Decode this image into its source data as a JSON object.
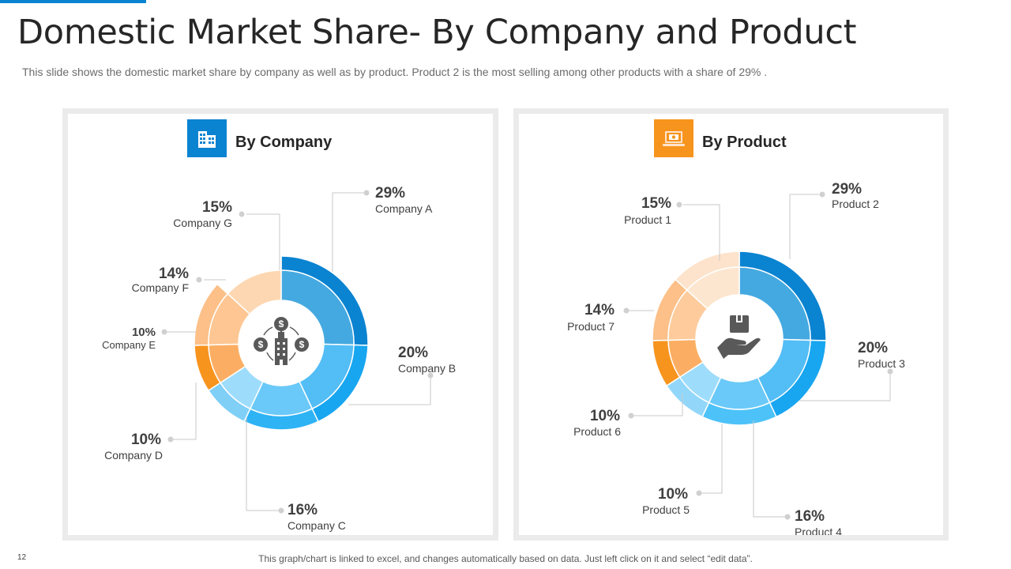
{
  "slide": {
    "title": "Domestic Market Share- By Company and Product",
    "subtitle": "This slide shows the domestic market share by company as well as by product. Product 2 is the most selling among other products with a share of 29% .",
    "page_number": "12",
    "footer": "This graph/chart is linked to excel, and changes automatically based on data. Just left click on it and select “edit data”."
  },
  "colors": {
    "accent": "#0a83d1",
    "company_icon_bg": "#0a83d1",
    "product_icon_bg": "#f7941d",
    "blue_dark": "#0a83d1",
    "blue": "#18a6f0",
    "orange": "#f7941d"
  },
  "chart_data": [
    {
      "type": "pie",
      "variant": "double-ring donut",
      "title": "By Company",
      "icon": "building-icon",
      "center_icon": "dollar-network-icon",
      "labels": [
        "Company A",
        "Company B",
        "Company C",
        "Company D",
        "Company E",
        "Company F",
        "Company G"
      ],
      "values": [
        29,
        20,
        16,
        10,
        10,
        14,
        15
      ],
      "value_labels": [
        "29%",
        "20%",
        "16%",
        "10%",
        "10%",
        "14%",
        "15%"
      ],
      "outer_colors": [
        "#0a83d1",
        "#18a6f0",
        "#2eb3f5",
        "#7fcff7",
        "#f7941d",
        "#fcc088",
        "#ffffff"
      ],
      "inner_colors": [
        "#44a9e0",
        "#53bdf5",
        "#6ac9f8",
        "#9edcfb",
        "#fbae63",
        "#fdc692",
        "#fdd7b2"
      ]
    },
    {
      "type": "pie",
      "variant": "double-ring donut",
      "title": "By Product",
      "icon": "money-laptop-icon",
      "center_icon": "hand-box-icon",
      "labels": [
        "Product 2",
        "Product 3",
        "Product 4",
        "Product 5",
        "Product 6",
        "Product 7",
        "Product 1"
      ],
      "values": [
        29,
        20,
        16,
        10,
        10,
        14,
        15
      ],
      "value_labels": [
        "29%",
        "20%",
        "16%",
        "10%",
        "10%",
        "14%",
        "15%"
      ],
      "outer_colors": [
        "#0a83d1",
        "#18a6f0",
        "#4dc2f8",
        "#92d7fa",
        "#f7941d",
        "#fcc088",
        "#fde3cc"
      ],
      "inner_colors": [
        "#44a9e0",
        "#53bdf5",
        "#6ac9f8",
        "#9edcfb",
        "#fbae63",
        "#fdcb9c",
        "#fde6cf"
      ]
    }
  ]
}
